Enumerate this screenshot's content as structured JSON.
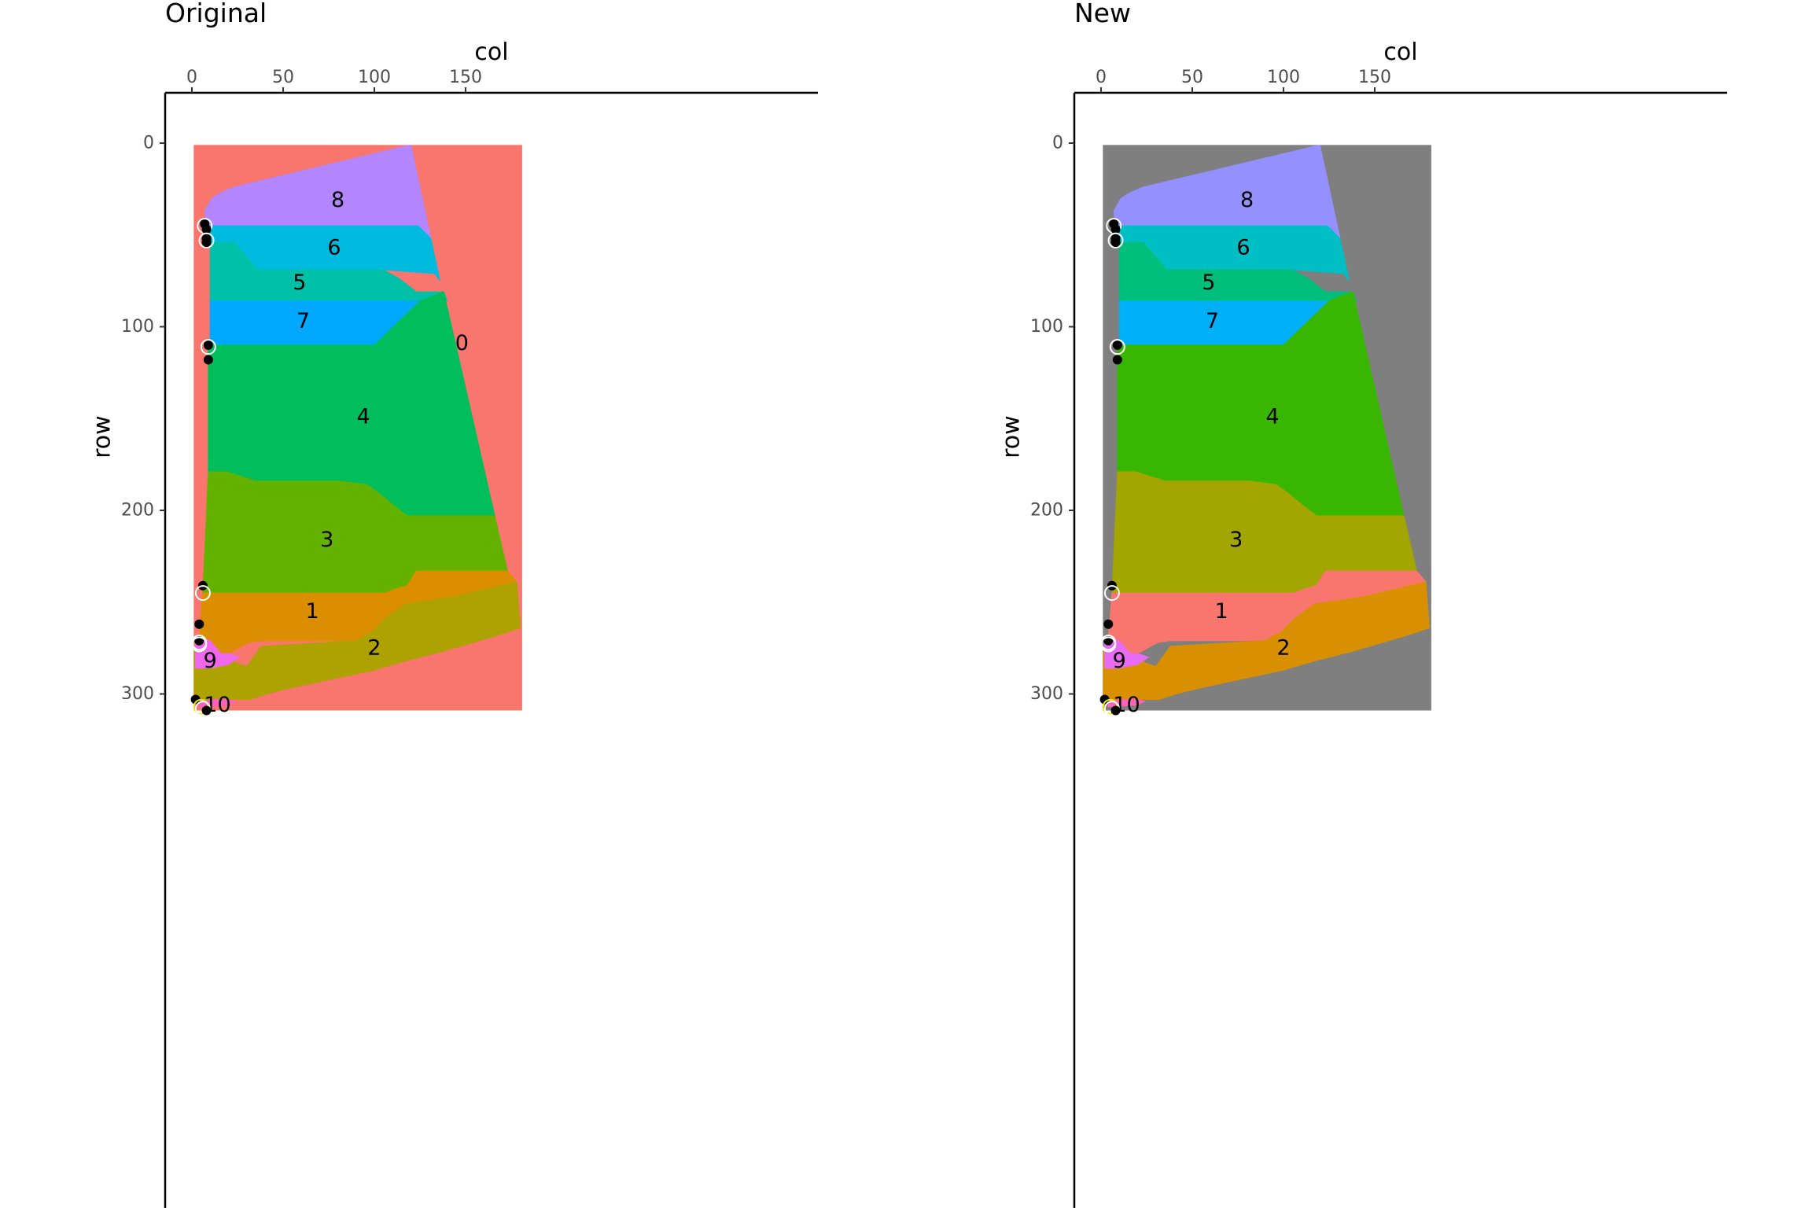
{
  "chart_data": [
    {
      "type": "heatmap",
      "title": "Original",
      "xlabel": "col",
      "ylabel": "row",
      "x_axis_position": "top",
      "y_axis_reversed": true,
      "xlim": [
        -8,
        190
      ],
      "ylim": [
        -15,
        325
      ],
      "x_ticks": [
        0,
        50,
        100,
        150
      ],
      "y_ticks": [
        0,
        100,
        200,
        300
      ],
      "x_tick_labels": [
        "0",
        "50",
        "100",
        "150"
      ],
      "y_tick_labels": [
        "0",
        "100",
        "200",
        "300"
      ],
      "grid": false,
      "image_extent": {
        "x": [
          1,
          181
        ],
        "y": [
          1,
          309
        ]
      },
      "background_label": "0",
      "background_color": "#F8766D",
      "regions": [
        {
          "label": "8",
          "color": "#B385FF",
          "label_pos": [
            80,
            31
          ],
          "polygon": [
            [
              120,
              1
            ],
            [
              131,
              52
            ],
            [
              124,
              45
            ],
            [
              8,
              45
            ],
            [
              7,
              37
            ],
            [
              11,
              30
            ],
            [
              16,
              27
            ],
            [
              23,
              24
            ],
            [
              120,
              1
            ]
          ]
        },
        {
          "label": "6",
          "color": "#00BAE0",
          "label_pos": [
            78,
            57
          ],
          "polygon": [
            [
              8,
              45
            ],
            [
              124,
              45
            ],
            [
              131,
              52
            ],
            [
              136,
              75
            ],
            [
              133,
              71
            ],
            [
              105,
              69
            ],
            [
              36,
              69
            ],
            [
              23,
              54
            ],
            [
              10,
              54
            ],
            [
              8,
              45
            ]
          ]
        },
        {
          "label": "5",
          "color": "#00C1A7",
          "label_pos": [
            59,
            76
          ],
          "polygon": [
            [
              10,
              54
            ],
            [
              23,
              54
            ],
            [
              36,
              69
            ],
            [
              105,
              69
            ],
            [
              114,
              74
            ],
            [
              123,
              81
            ],
            [
              138,
              81
            ],
            [
              140,
              86
            ],
            [
              10,
              86
            ],
            [
              10,
              54
            ]
          ]
        },
        {
          "label": "7",
          "color": "#00A9FF",
          "label_pos": [
            61,
            97
          ],
          "polygon": [
            [
              10,
              86
            ],
            [
              125,
              86
            ],
            [
              100,
              110
            ],
            [
              10,
              110
            ],
            [
              10,
              86
            ]
          ]
        },
        {
          "label": "0",
          "color": "#F8766D",
          "label_pos": [
            148,
            109
          ],
          "polygon": []
        },
        {
          "label": "4",
          "color": "#00BE5B",
          "label_pos": [
            94,
            149
          ],
          "polygon": [
            [
              9,
              110
            ],
            [
              100,
              110
            ],
            [
              125,
              86
            ],
            [
              138,
              81
            ],
            [
              166,
              203
            ],
            [
              118,
              203
            ],
            [
              109,
              196
            ],
            [
              103,
              191
            ],
            [
              96,
              186
            ],
            [
              81,
              184
            ],
            [
              35,
              184
            ],
            [
              19,
              179
            ],
            [
              9,
              179
            ],
            [
              9,
              110
            ]
          ]
        },
        {
          "label": "3",
          "color": "#64B200",
          "label_pos": [
            74,
            216
          ],
          "polygon": [
            [
              9,
              179
            ],
            [
              19,
              179
            ],
            [
              35,
              184
            ],
            [
              81,
              184
            ],
            [
              96,
              186
            ],
            [
              103,
              191
            ],
            [
              109,
              196
            ],
            [
              118,
              203
            ],
            [
              166,
              203
            ],
            [
              173,
              233
            ],
            [
              123,
              233
            ],
            [
              118,
              241
            ],
            [
              111,
              243
            ],
            [
              106,
              245
            ],
            [
              6,
              245
            ],
            [
              9,
              179
            ]
          ]
        },
        {
          "label": "1",
          "color": "#DB8E00",
          "label_pos": [
            66,
            255
          ],
          "polygon": [
            [
              6,
              245
            ],
            [
              106,
              245
            ],
            [
              111,
              243
            ],
            [
              118,
              241
            ],
            [
              123,
              233
            ],
            [
              173,
              233
            ],
            [
              178,
              239
            ],
            [
              144,
              247
            ],
            [
              131,
              249
            ],
            [
              117,
              251
            ],
            [
              106,
              259
            ],
            [
              99,
              266
            ],
            [
              90,
              271
            ],
            [
              38,
              271
            ],
            [
              31,
              272
            ],
            [
              20,
              278
            ],
            [
              16,
              278
            ],
            [
              10,
              271
            ],
            [
              4,
              269
            ],
            [
              6,
              245
            ]
          ]
        },
        {
          "label": "2",
          "color": "#AEA200",
          "label_pos": [
            100,
            275
          ],
          "polygon": [
            [
              4,
              269
            ],
            [
              10,
              271
            ],
            [
              16,
              278
            ],
            [
              20,
              278
            ],
            [
              24,
              283
            ],
            [
              30,
              285
            ],
            [
              38,
              274
            ],
            [
              90,
              271
            ],
            [
              99,
              266
            ],
            [
              106,
              259
            ],
            [
              117,
              251
            ],
            [
              131,
              249
            ],
            [
              144,
              247
            ],
            [
              178,
              239
            ],
            [
              180,
              264
            ],
            [
              168,
              268
            ],
            [
              137,
              277
            ],
            [
              117,
              282
            ],
            [
              100,
              287
            ],
            [
              53,
              297
            ],
            [
              41,
              300
            ],
            [
              32,
              303
            ],
            [
              13,
              303
            ],
            [
              7,
              305
            ],
            [
              1,
              301
            ],
            [
              1,
              277
            ],
            [
              4,
              269
            ]
          ]
        },
        {
          "label": "9",
          "color": "#EF67EB",
          "label_pos": [
            10,
            282
          ],
          "polygon": [
            [
              2,
              269
            ],
            [
              4,
              269
            ],
            [
              10,
              271
            ],
            [
              16,
              278
            ],
            [
              20,
              278
            ],
            [
              26,
              280
            ],
            [
              20,
              284
            ],
            [
              10,
              286
            ],
            [
              2,
              286
            ],
            [
              2,
              269
            ]
          ]
        },
        {
          "label": "10",
          "color": "#FF61C3",
          "label_pos": [
            14,
            306
          ],
          "polygon": [
            [
              4,
              304
            ],
            [
              13,
              303
            ],
            [
              20,
              303
            ],
            [
              24,
              304
            ],
            [
              20,
              306
            ],
            [
              4,
              307
            ],
            [
              4,
              304
            ]
          ]
        }
      ],
      "points": [
        {
          "kind": "end",
          "x": 7,
          "y": 44
        },
        {
          "kind": "start",
          "x": 7,
          "y": 45
        },
        {
          "kind": "end",
          "x": 8,
          "y": 47
        },
        {
          "kind": "end",
          "x": 8,
          "y": 52
        },
        {
          "kind": "start",
          "x": 8,
          "y": 53
        },
        {
          "kind": "end",
          "x": 8,
          "y": 54
        },
        {
          "kind": "end",
          "x": 9,
          "y": 110
        },
        {
          "kind": "start",
          "x": 9,
          "y": 111
        },
        {
          "kind": "end",
          "x": 9,
          "y": 118
        },
        {
          "kind": "end",
          "x": 6,
          "y": 241
        },
        {
          "kind": "start",
          "x": 6,
          "y": 245
        },
        {
          "kind": "end",
          "x": 4,
          "y": 262
        },
        {
          "kind": "end",
          "x": 4,
          "y": 271
        },
        {
          "kind": "start",
          "x": 4,
          "y": 272
        },
        {
          "kind": "start",
          "x": 4,
          "y": 273
        },
        {
          "kind": "end",
          "x": 2,
          "y": 303
        },
        {
          "kind": "start-yellow",
          "x": 5,
          "y": 307
        },
        {
          "kind": "start",
          "x": 6,
          "y": 308
        },
        {
          "kind": "end",
          "x": 8,
          "y": 309
        }
      ]
    },
    {
      "type": "heatmap",
      "title": "New",
      "xlabel": "col",
      "ylabel": "row",
      "x_axis_position": "top",
      "y_axis_reversed": true,
      "xlim": [
        -8,
        190
      ],
      "ylim": [
        -15,
        325
      ],
      "x_ticks": [
        0,
        50,
        100,
        150
      ],
      "y_ticks": [
        0,
        100,
        200,
        300
      ],
      "x_tick_labels": [
        "0",
        "50",
        "100",
        "150"
      ],
      "y_tick_labels": [
        "0",
        "100",
        "200",
        "300"
      ],
      "grid": false,
      "image_extent": {
        "x": [
          1,
          181
        ],
        "y": [
          1,
          309
        ]
      },
      "background_label": "",
      "background_color": "#7F7F7F",
      "regions": [
        {
          "label": "8",
          "color": "#9590FF",
          "label_pos": [
            80,
            31
          ]
        },
        {
          "label": "6",
          "color": "#00BFC4",
          "label_pos": [
            78,
            57
          ]
        },
        {
          "label": "5",
          "color": "#00BF7D",
          "label_pos": [
            59,
            76
          ]
        },
        {
          "label": "7",
          "color": "#00B0F6",
          "label_pos": [
            61,
            97
          ]
        },
        {
          "label": "4",
          "color": "#39B600",
          "label_pos": [
            94,
            149
          ]
        },
        {
          "label": "3",
          "color": "#A3A500",
          "label_pos": [
            74,
            216
          ]
        },
        {
          "label": "1",
          "color": "#F8766D",
          "label_pos": [
            66,
            255
          ]
        },
        {
          "label": "2",
          "color": "#D89000",
          "label_pos": [
            100,
            275
          ]
        },
        {
          "label": "9",
          "color": "#E76BF3",
          "label_pos": [
            10,
            282
          ]
        },
        {
          "label": "10",
          "color": "#FF62BC",
          "label_pos": [
            14,
            306
          ]
        }
      ],
      "points": "same as Original"
    }
  ]
}
